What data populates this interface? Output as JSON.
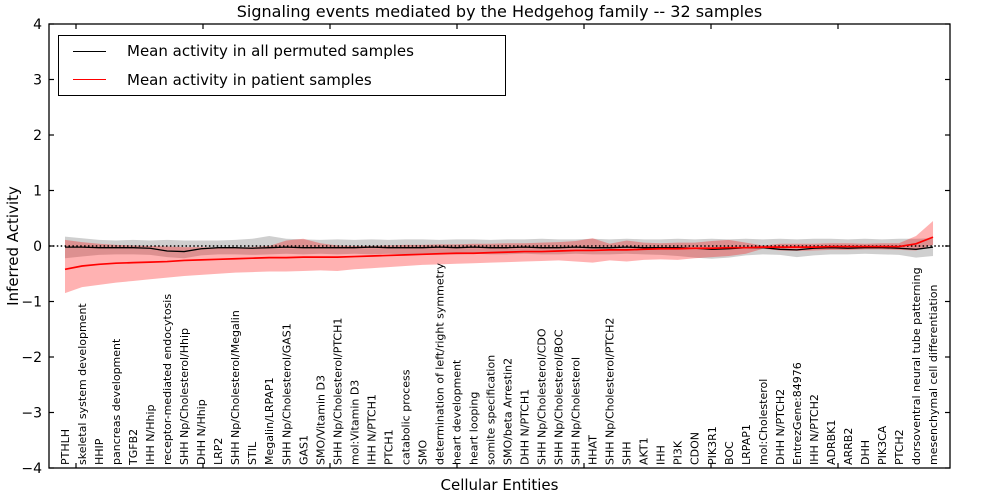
{
  "title": "Signaling events mediated by the Hedgehog family -- 32 samples",
  "axes": {
    "ylabel": "Inferred Activity",
    "xlabel": "Cellular Entities",
    "yticks": [
      {
        "value": 4,
        "label": "4"
      },
      {
        "value": 3,
        "label": "3"
      },
      {
        "value": 2,
        "label": "2"
      },
      {
        "value": 1,
        "label": "1"
      },
      {
        "value": 0,
        "label": "0"
      },
      {
        "value": -1,
        "label": "−1"
      },
      {
        "value": -2,
        "label": "−2"
      },
      {
        "value": -3,
        "label": "−3"
      },
      {
        "value": -4,
        "label": "−4"
      }
    ]
  },
  "chart_data": {
    "type": "line",
    "title": "Signaling events mediated by the Hedgehog family -- 32 samples",
    "xlabel": "Cellular Entities",
    "ylabel": "Inferred Activity",
    "ylim": [
      -4,
      4
    ],
    "grid": false,
    "legend_position": "upper left",
    "zero_reference_line": true,
    "categories": [
      "PTHLH",
      "skeletal system development",
      "HHIP",
      "pancreas development",
      "TGFB2",
      "IHH N/Hhip",
      "receptor-mediated endocytosis",
      "SHH Np/Cholesterol/Hhip",
      "DHH N/Hhip",
      "LRP2",
      "SHH Np/Cholesterol/Megalin",
      "STIL",
      "Megalin/LRPAP1",
      "SHH Np/Cholesterol/GAS1",
      "GAS1",
      "SMO/Vitamin D3",
      "SHH Np/Cholesterol/PTCH1",
      "mol:Vitamin D3",
      "IHH N/PTCH1",
      "PTCH1",
      "catabolic process",
      "SMO",
      "determination of left/right symmetry",
      "heart development",
      "heart looping",
      "somite specification",
      "SMO/beta Arrestin2",
      "DHH N/PTCH1",
      "SHH Np/Cholesterol/CDO",
      "SHH Np/Cholesterol/BOC",
      "SHH Np/Cholesterol",
      "HHAT",
      "SHH Np/Cholesterol/PTCH2",
      "SHH",
      "AKT1",
      "IHH",
      "PI3K",
      "CDON",
      "PIK3R1",
      "BOC",
      "LRPAP1",
      "mol:Cholesterol",
      "DHH N/PTCH2",
      "EntrezGene:84976",
      "IHH N/PTCH2",
      "ADRBK1",
      "ARRB2",
      "DHH",
      "PIK3CA",
      "PTCH2",
      "dorsoventral neural tube patterning",
      "mesenchymal cell differentiation"
    ],
    "series": [
      {
        "id": "permuted",
        "name": "Mean activity in all permuted samples",
        "color": "#000000",
        "band_fill": "rgba(128,128,128,0.38)",
        "mean": [
          -0.02,
          -0.02,
          -0.03,
          -0.03,
          -0.03,
          -0.04,
          -0.09,
          -0.1,
          -0.05,
          -0.03,
          -0.03,
          -0.04,
          -0.03,
          -0.02,
          -0.03,
          -0.03,
          -0.03,
          -0.03,
          -0.02,
          -0.03,
          -0.03,
          -0.03,
          -0.02,
          -0.03,
          -0.02,
          -0.03,
          -0.03,
          -0.02,
          -0.03,
          -0.03,
          -0.02,
          -0.03,
          -0.03,
          -0.02,
          -0.03,
          -0.03,
          -0.03,
          -0.04,
          -0.06,
          -0.05,
          -0.03,
          -0.03,
          -0.06,
          -0.07,
          -0.04,
          -0.03,
          -0.04,
          -0.03,
          -0.03,
          -0.04,
          -0.06,
          -0.02
        ],
        "band_upper": [
          0.17,
          0.14,
          0.11,
          0.1,
          0.11,
          0.1,
          0.11,
          0.1,
          0.1,
          0.1,
          0.11,
          0.13,
          0.18,
          0.13,
          0.12,
          0.11,
          0.12,
          0.11,
          0.12,
          0.11,
          0.12,
          0.12,
          0.11,
          0.12,
          0.12,
          0.11,
          0.12,
          0.12,
          0.13,
          0.12,
          0.12,
          0.13,
          0.12,
          0.13,
          0.12,
          0.12,
          0.13,
          0.12,
          0.13,
          0.12,
          0.13,
          0.12,
          0.13,
          0.12,
          0.13,
          0.13,
          0.12,
          0.13,
          0.12,
          0.13,
          0.13,
          0.14
        ],
        "band_lower": [
          -0.22,
          -0.19,
          -0.16,
          -0.15,
          -0.15,
          -0.16,
          -0.2,
          -0.22,
          -0.17,
          -0.15,
          -0.15,
          -0.16,
          -0.15,
          -0.14,
          -0.15,
          -0.14,
          -0.15,
          -0.14,
          -0.15,
          -0.14,
          -0.15,
          -0.15,
          -0.14,
          -0.15,
          -0.14,
          -0.15,
          -0.15,
          -0.14,
          -0.15,
          -0.15,
          -0.14,
          -0.15,
          -0.15,
          -0.14,
          -0.15,
          -0.16,
          -0.18,
          -0.21,
          -0.23,
          -0.21,
          -0.17,
          -0.15,
          -0.16,
          -0.2,
          -0.17,
          -0.15,
          -0.15,
          -0.14,
          -0.15,
          -0.16,
          -0.21,
          -0.18
        ]
      },
      {
        "id": "patient",
        "name": "Mean activity in patient samples",
        "color": "#ff0000",
        "band_fill": "rgba(255,0,0,0.30)",
        "mean": [
          -0.42,
          -0.36,
          -0.33,
          -0.31,
          -0.3,
          -0.29,
          -0.28,
          -0.26,
          -0.25,
          -0.24,
          -0.23,
          -0.22,
          -0.21,
          -0.21,
          -0.2,
          -0.2,
          -0.2,
          -0.19,
          -0.18,
          -0.17,
          -0.16,
          -0.15,
          -0.14,
          -0.13,
          -0.13,
          -0.12,
          -0.11,
          -0.1,
          -0.1,
          -0.09,
          -0.08,
          -0.08,
          -0.07,
          -0.07,
          -0.06,
          -0.05,
          -0.05,
          -0.04,
          -0.04,
          -0.03,
          -0.03,
          -0.02,
          -0.02,
          -0.02,
          -0.02,
          -0.01,
          -0.01,
          -0.01,
          -0.01,
          -0.01,
          0.04,
          0.16
        ],
        "band_upper": [
          0.11,
          0.07,
          0.04,
          0.02,
          0.01,
          0.0,
          -0.01,
          -0.02,
          -0.02,
          -0.03,
          -0.03,
          -0.02,
          0.0,
          0.1,
          0.13,
          0.05,
          0.01,
          0.0,
          0.0,
          0.01,
          0.02,
          0.02,
          0.03,
          0.03,
          0.04,
          0.04,
          0.05,
          0.05,
          0.06,
          0.07,
          0.09,
          0.14,
          0.04,
          0.1,
          0.06,
          0.05,
          0.06,
          0.06,
          0.09,
          0.11,
          0.06,
          0.01,
          0.04,
          0.04,
          0.04,
          0.05,
          0.05,
          0.04,
          0.05,
          0.05,
          0.18,
          0.45
        ],
        "band_lower": [
          -0.85,
          -0.74,
          -0.7,
          -0.66,
          -0.63,
          -0.6,
          -0.57,
          -0.54,
          -0.52,
          -0.5,
          -0.48,
          -0.47,
          -0.46,
          -0.46,
          -0.45,
          -0.44,
          -0.45,
          -0.42,
          -0.4,
          -0.38,
          -0.36,
          -0.34,
          -0.33,
          -0.32,
          -0.31,
          -0.3,
          -0.29,
          -0.28,
          -0.27,
          -0.26,
          -0.28,
          -0.3,
          -0.26,
          -0.28,
          -0.25,
          -0.24,
          -0.25,
          -0.22,
          -0.2,
          -0.18,
          -0.14,
          -0.05,
          -0.08,
          -0.09,
          -0.08,
          -0.07,
          -0.07,
          -0.06,
          -0.06,
          -0.07,
          -0.08,
          0.02
        ]
      }
    ]
  }
}
